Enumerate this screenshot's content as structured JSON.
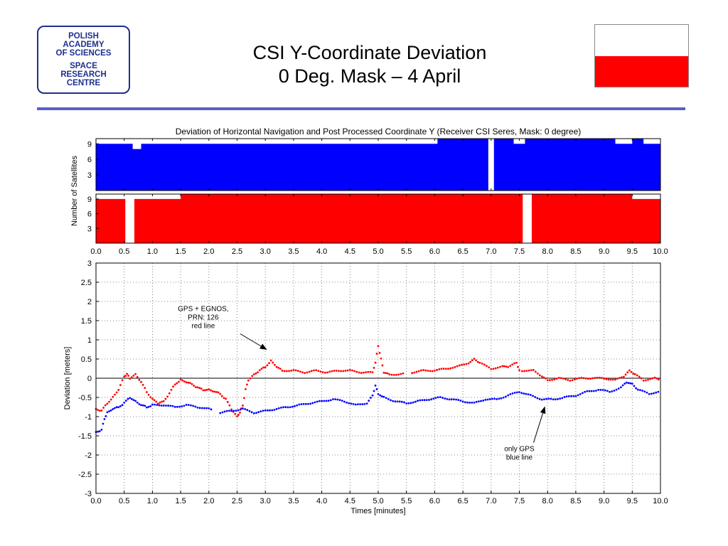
{
  "logo": {
    "line1": "POLISH",
    "line2": "ACADEMY",
    "line3": "OF SCIENCES",
    "line4": "SPACE",
    "line5": "RESEARCH",
    "line6": "CENTRE"
  },
  "slide": {
    "title_line1": "CSI Y-Coordinate Deviation",
    "title_line2": "0 Deg. Mask – 4 April"
  },
  "colors": {
    "blue": "#0000ff",
    "red": "#ff0000",
    "divider": "#5a5fc8",
    "logo": "#1f2f8f"
  },
  "chart_data": {
    "type": "line",
    "title": "Deviation of Horizontal Navigation and Post Processed Coordinate Y (Receiver CSI Seres, Mask: 0 degree)",
    "satellite_panels": {
      "ylabel": "Number of Satellites",
      "yticks": [
        3,
        6,
        9
      ],
      "ylim": [
        0,
        10
      ],
      "xlim": [
        0,
        10
      ],
      "xticks": [
        "0.0",
        "0.5",
        "1.0",
        "1.5",
        "2.0",
        "2.5",
        "3.0",
        "3.5",
        "4.0",
        "4.5",
        "5.0",
        "5.5",
        "6.0",
        "6.5",
        "7.0",
        "7.5",
        "8.0",
        "8.5",
        "9.0",
        "9.5",
        "10.0"
      ],
      "blue_sat_count": {
        "x": [
          0.0,
          0.3,
          0.5,
          0.65,
          0.8,
          1.2,
          1.8,
          2.4,
          3.0,
          3.8,
          4.5,
          5.1,
          5.9,
          6.05,
          6.9,
          6.95,
          7.0,
          7.05,
          7.4,
          7.6,
          8.0,
          8.8,
          9.2,
          9.5,
          9.7,
          10.0
        ],
        "y": [
          9,
          9,
          9,
          8,
          9,
          9,
          9,
          9,
          9,
          9,
          9,
          9,
          9,
          10,
          10,
          0,
          0,
          10,
          9,
          10,
          10,
          10,
          9,
          10,
          9,
          9
        ],
        "gaps": [
          [
            6.93,
            7.02
          ]
        ]
      },
      "red_sat_count": {
        "x": [
          0.0,
          0.5,
          0.52,
          0.66,
          0.68,
          1.5,
          2.5,
          3.0,
          4.5,
          6.0,
          7.5,
          7.56,
          7.7,
          7.72,
          8.5,
          9.3,
          9.5,
          10.0
        ],
        "y": [
          9,
          9,
          0,
          0,
          9,
          10,
          10,
          10,
          10,
          10,
          10,
          0,
          0,
          10,
          10,
          10,
          9,
          10
        ],
        "gaps": [
          [
            0.52,
            0.66
          ],
          [
            7.56,
            7.7
          ]
        ]
      }
    },
    "deviation_panel": {
      "ylabel": "Deviation [meters]",
      "xlabel": "Times [minutes]",
      "xlim": [
        0,
        10
      ],
      "ylim": [
        -3,
        3
      ],
      "yticks": [
        "3",
        "2.5",
        "2",
        "1.5",
        "1",
        "0.5",
        "0",
        "-0.5",
        "-1",
        "-1.5",
        "-2",
        "-2.5",
        "-3"
      ],
      "xticks": [
        "0.0",
        "0.5",
        "1.0",
        "1.5",
        "2.0",
        "2.5",
        "3.0",
        "3.5",
        "4.0",
        "4.5",
        "5.0",
        "5.5",
        "6.0",
        "6.5",
        "7.0",
        "7.5",
        "8.0",
        "8.5",
        "9.0",
        "9.5",
        "10.0"
      ],
      "grid": true,
      "series": [
        {
          "color": "red",
          "x": [
            0.0,
            0.1,
            0.2,
            0.3,
            0.4,
            0.5,
            0.55,
            0.6,
            0.7,
            0.8,
            0.9,
            1.0,
            1.1,
            1.2,
            1.3,
            1.4,
            1.5,
            1.6,
            1.7,
            1.8,
            1.9,
            2.0,
            2.1,
            2.2,
            2.3,
            2.4,
            2.5,
            2.55,
            2.6,
            2.65,
            2.7,
            2.8,
            2.9,
            3.0,
            3.1,
            3.2,
            3.3,
            3.5,
            3.7,
            3.9,
            4.1,
            4.3,
            4.5,
            4.7,
            4.9,
            4.95,
            5.0,
            5.05,
            5.1,
            5.2,
            5.4,
            5.6,
            5.8,
            6.0,
            6.2,
            6.4,
            6.6,
            6.7,
            6.8,
            7.0,
            7.2,
            7.3,
            7.45,
            7.5,
            7.55,
            7.75,
            7.9,
            8.0,
            8.2,
            8.4,
            8.6,
            8.8,
            9.0,
            9.2,
            9.35,
            9.45,
            9.55,
            9.7,
            9.9,
            10.0
          ],
          "y": [
            -0.8,
            -0.85,
            -0.65,
            -0.5,
            -0.3,
            0.05,
            0.1,
            0.0,
            0.1,
            -0.1,
            -0.35,
            -0.55,
            -0.65,
            -0.6,
            -0.4,
            -0.15,
            -0.05,
            -0.1,
            -0.15,
            -0.25,
            -0.3,
            -0.3,
            -0.35,
            -0.4,
            -0.55,
            -0.8,
            -1.0,
            -0.9,
            -0.7,
            -0.3,
            -0.05,
            0.1,
            0.2,
            0.3,
            0.45,
            0.3,
            0.2,
            0.2,
            0.15,
            0.2,
            0.15,
            0.2,
            0.2,
            0.15,
            0.15,
            0.4,
            0.85,
            0.5,
            0.15,
            0.1,
            0.1,
            0.15,
            0.2,
            0.2,
            0.25,
            0.3,
            0.4,
            0.5,
            0.4,
            0.25,
            0.3,
            0.3,
            0.4,
            0.2,
            0.2,
            0.2,
            0.05,
            -0.05,
            0.0,
            -0.05,
            0.0,
            0.0,
            0.0,
            -0.05,
            0.05,
            0.2,
            0.1,
            -0.05,
            0.0,
            -0.05
          ],
          "gaps_after_x": [
            5.4,
            7.5
          ]
        },
        {
          "color": "blue",
          "x": [
            0.0,
            0.1,
            0.15,
            0.2,
            0.3,
            0.4,
            0.5,
            0.6,
            0.7,
            0.8,
            0.9,
            1.0,
            1.2,
            1.4,
            1.6,
            1.8,
            2.0,
            2.2,
            2.4,
            2.6,
            2.8,
            3.0,
            3.2,
            3.4,
            3.6,
            3.8,
            4.0,
            4.2,
            4.4,
            4.6,
            4.8,
            4.9,
            4.95,
            5.0,
            5.1,
            5.3,
            5.5,
            5.7,
            5.9,
            6.1,
            6.3,
            6.5,
            6.7,
            6.9,
            7.1,
            7.3,
            7.5,
            7.7,
            7.9,
            8.1,
            8.3,
            8.5,
            8.7,
            8.9,
            9.1,
            9.3,
            9.4,
            9.5,
            9.6,
            9.8,
            10.0
          ],
          "y": [
            -1.4,
            -1.35,
            -1.05,
            -0.9,
            -0.8,
            -0.75,
            -0.65,
            -0.5,
            -0.6,
            -0.7,
            -0.75,
            -0.7,
            -0.7,
            -0.75,
            -0.7,
            -0.75,
            -0.8,
            -0.9,
            -0.85,
            -0.8,
            -0.9,
            -0.85,
            -0.8,
            -0.75,
            -0.7,
            -0.65,
            -0.6,
            -0.55,
            -0.6,
            -0.7,
            -0.65,
            -0.45,
            -0.2,
            -0.4,
            -0.5,
            -0.6,
            -0.65,
            -0.6,
            -0.55,
            -0.5,
            -0.55,
            -0.6,
            -0.65,
            -0.55,
            -0.55,
            -0.45,
            -0.35,
            -0.45,
            -0.55,
            -0.55,
            -0.5,
            -0.45,
            -0.35,
            -0.3,
            -0.35,
            -0.25,
            -0.1,
            -0.15,
            -0.3,
            -0.4,
            -0.35
          ],
          "gaps_after_x": [
            2.0
          ]
        }
      ],
      "annotations": [
        {
          "lines": [
            "GPS + EGNOS,",
            "PRN: 126",
            "red line"
          ],
          "text_anchor_xy": [
            1.9,
            1.75
          ],
          "arrow_to": [
            3.02,
            0.75
          ]
        },
        {
          "lines": [
            "only GPS",
            "blue line"
          ],
          "text_anchor_xy": [
            7.5,
            -1.9
          ],
          "arrow_to": [
            7.95,
            -0.75
          ]
        }
      ]
    }
  }
}
